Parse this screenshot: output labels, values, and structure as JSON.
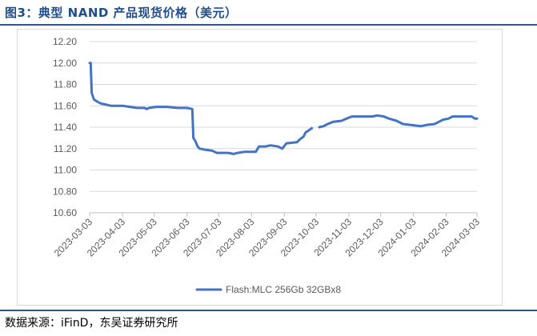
{
  "header": {
    "title": "图3：典型 NAND 产品现货价格（美元）"
  },
  "footer": {
    "source": "数据来源：iFinD，东吴证券研究所"
  },
  "colors": {
    "title": "#1f4e8c",
    "rules": "#2f5597",
    "series": "#4472c4",
    "grid": "#d9d9d9"
  },
  "chart_data": {
    "type": "line",
    "title": "",
    "xlabel": "",
    "ylabel": "",
    "ylim": [
      10.6,
      12.2
    ],
    "yticks": [
      "10.60",
      "10.80",
      "11.00",
      "11.20",
      "11.40",
      "11.60",
      "11.80",
      "12.00",
      "12.20"
    ],
    "xticks": [
      "2023-03-03",
      "2023-04-03",
      "2023-05-03",
      "2023-06-03",
      "2023-07-03",
      "2023-08-03",
      "2023-09-03",
      "2023-10-03",
      "2023-11-03",
      "2023-12-03",
      "2024-01-03",
      "2024-02-03",
      "2024-03-03"
    ],
    "grid": {
      "horizontal": true,
      "vertical": false
    },
    "legend_position": "bottom",
    "series": [
      {
        "name": "Flash:MLC 256Gb 32GBx8",
        "color": "#4472c4",
        "points": [
          [
            "2023-03-03",
            12.0
          ],
          [
            "2023-03-04",
            12.0
          ],
          [
            "2023-03-05",
            11.72
          ],
          [
            "2023-03-07",
            11.66
          ],
          [
            "2023-03-10",
            11.64
          ],
          [
            "2023-03-14",
            11.62
          ],
          [
            "2023-03-19",
            11.61
          ],
          [
            "2023-03-23",
            11.6
          ],
          [
            "2023-04-03",
            11.6
          ],
          [
            "2023-04-10",
            11.59
          ],
          [
            "2023-04-17",
            11.58
          ],
          [
            "2023-04-24",
            11.58
          ],
          [
            "2023-04-26",
            11.57
          ],
          [
            "2023-04-28",
            11.58
          ],
          [
            "2023-05-05",
            11.59
          ],
          [
            "2023-05-15",
            11.59
          ],
          [
            "2023-05-25",
            11.58
          ],
          [
            "2023-06-03",
            11.58
          ],
          [
            "2023-06-08",
            11.57
          ],
          [
            "2023-06-09",
            11.3
          ],
          [
            "2023-06-11",
            11.27
          ],
          [
            "2023-06-13",
            11.22
          ],
          [
            "2023-06-15",
            11.2
          ],
          [
            "2023-06-20",
            11.19
          ],
          [
            "2023-06-27",
            11.18
          ],
          [
            "2023-07-01",
            11.16
          ],
          [
            "2023-07-12",
            11.16
          ],
          [
            "2023-07-17",
            11.15
          ],
          [
            "2023-07-21",
            11.16
          ],
          [
            "2023-07-27",
            11.17
          ],
          [
            "2023-08-07",
            11.17
          ],
          [
            "2023-08-10",
            11.22
          ],
          [
            "2023-08-16",
            11.22
          ],
          [
            "2023-08-21",
            11.23
          ],
          [
            "2023-08-28",
            11.22
          ],
          [
            "2023-09-01",
            11.2
          ],
          [
            "2023-09-05",
            11.25
          ],
          [
            "2023-09-15",
            11.26
          ],
          [
            "2023-09-18",
            11.29
          ],
          [
            "2023-09-21",
            11.31
          ],
          [
            "2023-09-23",
            11.35
          ],
          [
            "2023-09-26",
            11.37
          ],
          [
            "2023-09-29",
            11.39
          ],
          null,
          [
            "2023-10-06",
            11.4
          ],
          [
            "2023-10-10",
            11.41
          ],
          [
            "2023-10-14",
            11.43
          ],
          [
            "2023-10-19",
            11.45
          ],
          [
            "2023-10-27",
            11.46
          ],
          [
            "2023-11-03",
            11.49
          ],
          [
            "2023-11-06",
            11.5
          ],
          [
            "2023-11-25",
            11.5
          ],
          [
            "2023-11-30",
            11.51
          ],
          [
            "2023-12-06",
            11.5
          ],
          [
            "2023-12-11",
            11.48
          ],
          [
            "2023-12-18",
            11.46
          ],
          [
            "2023-12-24",
            11.43
          ],
          [
            "2024-01-01",
            11.42
          ],
          [
            "2024-01-10",
            11.41
          ],
          [
            "2024-01-15",
            11.42
          ],
          [
            "2024-01-23",
            11.43
          ],
          [
            "2024-01-31",
            11.47
          ],
          [
            "2024-02-05",
            11.48
          ],
          [
            "2024-02-09",
            11.5
          ],
          [
            "2024-02-27",
            11.5
          ],
          [
            "2024-03-01",
            11.48
          ],
          [
            "2024-03-03",
            11.48
          ]
        ]
      }
    ]
  }
}
